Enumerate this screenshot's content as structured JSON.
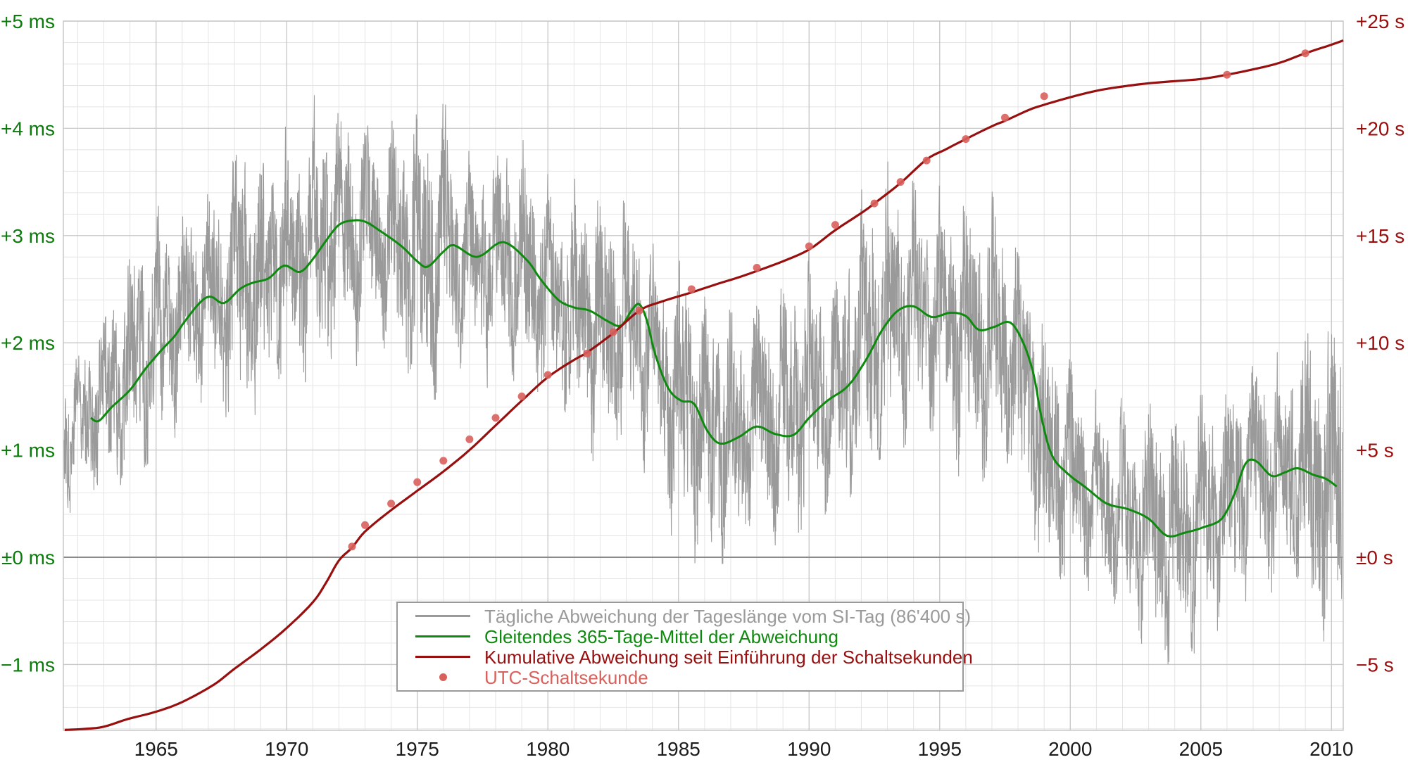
{
  "chart_data": {
    "type": "line",
    "title": "",
    "background_color": "#ffffff",
    "grid": {
      "minor_color": "#e4e4e4",
      "major_color": "#c8c8c8",
      "zero_line_color": "#8a8a8a",
      "x_minor_step_years": 1,
      "x_major_step_years": 5,
      "y_minor_step_ms": 0.2,
      "y_major_step_ms": 1
    },
    "x_axis": {
      "label": "",
      "range": [
        1961.45,
        2010.45
      ],
      "ticks": [
        1965,
        1970,
        1975,
        1980,
        1985,
        1990,
        1995,
        2000,
        2005,
        2010
      ],
      "tick_color": "#1b1b1b"
    },
    "y_axis_left": {
      "unit": "ms",
      "range": [
        -1.614,
        5
      ],
      "color": "#0b7c0b",
      "ticks": [
        {
          "value": 5,
          "label": "+5 ms"
        },
        {
          "value": 4,
          "label": "+4 ms"
        },
        {
          "value": 3,
          "label": "+3 ms"
        },
        {
          "value": 2,
          "label": "+2 ms"
        },
        {
          "value": 1,
          "label": "+1 ms"
        },
        {
          "value": 0,
          "label": "±0 ms"
        },
        {
          "value": -1,
          "label": "−1 ms"
        }
      ]
    },
    "y_axis_right": {
      "unit": "s",
      "range": [
        -8.07,
        25
      ],
      "color": "#9b0d0d",
      "ticks": [
        {
          "value": 25,
          "label": "+25 s"
        },
        {
          "value": 20,
          "label": "+20 s"
        },
        {
          "value": 15,
          "label": "+15 s"
        },
        {
          "value": 10,
          "label": "+10 s"
        },
        {
          "value": 5,
          "label": "+5 s"
        },
        {
          "value": 0,
          "label": "±0 s"
        },
        {
          "value": -5,
          "label": "−5 s"
        }
      ]
    },
    "series": [
      {
        "name": "Tägliche Abweichung der Tageslänge vom SI-Tag (86'400 s)",
        "type": "noisy_line",
        "color": "#9a9a9a",
        "unit": "ms",
        "description": "Daily deviation of day length; rendered as dense noise between yearly envelope [year, min_ms, max_ms]",
        "envelope": [
          [
            1961.5,
            0.3,
            1.8
          ],
          [
            1962,
            0.6,
            2.1
          ],
          [
            1963,
            0.6,
            2.6
          ],
          [
            1964,
            0.7,
            3.0
          ],
          [
            1965,
            1.0,
            3.4
          ],
          [
            1966,
            1.2,
            3.6
          ],
          [
            1967,
            1.2,
            3.7
          ],
          [
            1968,
            1.4,
            3.8
          ],
          [
            1969,
            1.3,
            3.9
          ],
          [
            1970,
            1.5,
            4.1
          ],
          [
            1971,
            1.6,
            4.35
          ],
          [
            1972,
            1.8,
            4.4
          ],
          [
            1973,
            1.7,
            4.3
          ],
          [
            1974,
            1.6,
            4.1
          ],
          [
            1975,
            1.5,
            4.1
          ],
          [
            1976,
            1.5,
            4.2
          ],
          [
            1977,
            1.6,
            4.1
          ],
          [
            1978,
            1.6,
            4.0
          ],
          [
            1979,
            1.4,
            3.9
          ],
          [
            1980,
            1.1,
            3.6
          ],
          [
            1981,
            1.0,
            3.5
          ],
          [
            1982,
            0.9,
            3.5
          ],
          [
            1983,
            1.0,
            3.6
          ],
          [
            1984,
            0.4,
            3.0
          ],
          [
            1985,
            0.1,
            2.8
          ],
          [
            1986,
            -0.1,
            2.4
          ],
          [
            1987,
            0.0,
            2.6
          ],
          [
            1988,
            0.0,
            2.6
          ],
          [
            1989,
            0.2,
            2.9
          ],
          [
            1990,
            0.3,
            3.1
          ],
          [
            1991,
            0.3,
            3.1
          ],
          [
            1992,
            0.8,
            3.5
          ],
          [
            1993,
            1.0,
            3.7
          ],
          [
            1994,
            0.9,
            3.6
          ],
          [
            1995,
            0.8,
            3.5
          ],
          [
            1996,
            0.6,
            3.4
          ],
          [
            1997,
            0.6,
            3.4
          ],
          [
            1998,
            0.0,
            2.8
          ],
          [
            1999,
            -0.35,
            2.2
          ],
          [
            2000,
            -0.55,
            1.9
          ],
          [
            2001,
            -0.55,
            1.7
          ],
          [
            2002,
            -0.7,
            1.5
          ],
          [
            2003,
            -0.95,
            1.4
          ],
          [
            2004,
            -1.05,
            1.45
          ],
          [
            2005,
            -1.0,
            1.6
          ],
          [
            2006,
            -0.5,
            1.9
          ],
          [
            2007,
            -0.35,
            2.0
          ],
          [
            2008,
            -0.5,
            2.2
          ],
          [
            2009,
            -0.8,
            2.1
          ],
          [
            2010,
            -0.95,
            2.2
          ],
          [
            2010.45,
            -0.9,
            2.1
          ]
        ]
      },
      {
        "name": "Gleitendes 365-Tage-Mittel der Abweichung",
        "type": "line",
        "color": "#0e8a0e",
        "unit": "ms",
        "points": [
          [
            1962.5,
            1.3
          ],
          [
            1962.8,
            1.27
          ],
          [
            1963.3,
            1.4
          ],
          [
            1964.0,
            1.56
          ],
          [
            1964.6,
            1.76
          ],
          [
            1965.2,
            1.93
          ],
          [
            1965.7,
            2.06
          ],
          [
            1966.1,
            2.2
          ],
          [
            1966.7,
            2.38
          ],
          [
            1967.1,
            2.43
          ],
          [
            1967.6,
            2.37
          ],
          [
            1968.2,
            2.5
          ],
          [
            1968.7,
            2.56
          ],
          [
            1969.3,
            2.6
          ],
          [
            1969.9,
            2.72
          ],
          [
            1970.5,
            2.66
          ],
          [
            1971.0,
            2.78
          ],
          [
            1971.5,
            2.95
          ],
          [
            1972.0,
            3.1
          ],
          [
            1972.5,
            3.14
          ],
          [
            1973.0,
            3.13
          ],
          [
            1973.6,
            3.04
          ],
          [
            1974.4,
            2.9
          ],
          [
            1975.0,
            2.76
          ],
          [
            1975.4,
            2.71
          ],
          [
            1976.0,
            2.85
          ],
          [
            1976.4,
            2.91
          ],
          [
            1977.1,
            2.81
          ],
          [
            1977.5,
            2.82
          ],
          [
            1978.3,
            2.94
          ],
          [
            1979.2,
            2.77
          ],
          [
            1979.7,
            2.6
          ],
          [
            1980.4,
            2.4
          ],
          [
            1981.0,
            2.33
          ],
          [
            1981.6,
            2.3
          ],
          [
            1982.3,
            2.2
          ],
          [
            1982.8,
            2.16
          ],
          [
            1983.2,
            2.3
          ],
          [
            1983.5,
            2.36
          ],
          [
            1983.8,
            2.2
          ],
          [
            1984.1,
            1.9
          ],
          [
            1984.6,
            1.58
          ],
          [
            1985.1,
            1.46
          ],
          [
            1985.6,
            1.43
          ],
          [
            1986.1,
            1.18
          ],
          [
            1986.6,
            1.06
          ],
          [
            1987.3,
            1.12
          ],
          [
            1988.0,
            1.22
          ],
          [
            1988.7,
            1.15
          ],
          [
            1989.4,
            1.14
          ],
          [
            1990.0,
            1.3
          ],
          [
            1990.7,
            1.46
          ],
          [
            1991.5,
            1.6
          ],
          [
            1992.2,
            1.85
          ],
          [
            1992.8,
            2.12
          ],
          [
            1993.4,
            2.3
          ],
          [
            1994.0,
            2.34
          ],
          [
            1994.7,
            2.24
          ],
          [
            1995.4,
            2.28
          ],
          [
            1996.0,
            2.25
          ],
          [
            1996.5,
            2.12
          ],
          [
            1997.1,
            2.15
          ],
          [
            1997.7,
            2.19
          ],
          [
            1998.2,
            2.0
          ],
          [
            1998.6,
            1.7
          ],
          [
            1998.9,
            1.3
          ],
          [
            1999.3,
            0.95
          ],
          [
            1999.9,
            0.78
          ],
          [
            2000.6,
            0.65
          ],
          [
            2001.4,
            0.5
          ],
          [
            2002.2,
            0.45
          ],
          [
            2003.0,
            0.36
          ],
          [
            2003.7,
            0.2
          ],
          [
            2004.4,
            0.23
          ],
          [
            2005.1,
            0.28
          ],
          [
            2005.8,
            0.36
          ],
          [
            2006.3,
            0.6
          ],
          [
            2006.7,
            0.87
          ],
          [
            2007.1,
            0.9
          ],
          [
            2007.7,
            0.76
          ],
          [
            2008.2,
            0.79
          ],
          [
            2008.7,
            0.83
          ],
          [
            2009.3,
            0.77
          ],
          [
            2009.8,
            0.73
          ],
          [
            2010.2,
            0.66
          ]
        ]
      },
      {
        "name": "Kumulative Abweichung seit Einführung der Schaltsekunden",
        "type": "line",
        "color": "#970f0f",
        "unit": "s",
        "points": [
          [
            1961.5,
            -8.05
          ],
          [
            1962.3,
            -8.0
          ],
          [
            1963.0,
            -7.9
          ],
          [
            1963.9,
            -7.55
          ],
          [
            1965.0,
            -7.2
          ],
          [
            1966.0,
            -6.75
          ],
          [
            1967.2,
            -5.95
          ],
          [
            1968.0,
            -5.2
          ],
          [
            1969.0,
            -4.3
          ],
          [
            1970.0,
            -3.3
          ],
          [
            1971.0,
            -2.1
          ],
          [
            1971.5,
            -1.2
          ],
          [
            1972.0,
            -0.15
          ],
          [
            1972.5,
            0.45
          ],
          [
            1973.0,
            1.2
          ],
          [
            1974.0,
            2.2
          ],
          [
            1975.0,
            3.1
          ],
          [
            1976.0,
            4.0
          ],
          [
            1977.0,
            5.0
          ],
          [
            1978.0,
            6.15
          ],
          [
            1979.0,
            7.3
          ],
          [
            1980.0,
            8.4
          ],
          [
            1981.0,
            9.2
          ],
          [
            1981.5,
            9.55
          ],
          [
            1982.5,
            10.45
          ],
          [
            1983.5,
            11.5
          ],
          [
            1984.3,
            11.9
          ],
          [
            1985.5,
            12.35
          ],
          [
            1986.5,
            12.75
          ],
          [
            1987.3,
            13.05
          ],
          [
            1988.0,
            13.35
          ],
          [
            1989.0,
            13.8
          ],
          [
            1990.0,
            14.35
          ],
          [
            1991.0,
            15.25
          ],
          [
            1992.0,
            16.05
          ],
          [
            1992.5,
            16.5
          ],
          [
            1993.5,
            17.45
          ],
          [
            1994.5,
            18.55
          ],
          [
            1995.2,
            19.0
          ],
          [
            1996.0,
            19.5
          ],
          [
            1997.0,
            20.1
          ],
          [
            1997.5,
            20.35
          ],
          [
            1998.4,
            20.85
          ],
          [
            1999.0,
            21.1
          ],
          [
            2000.0,
            21.45
          ],
          [
            2001.0,
            21.75
          ],
          [
            2002.0,
            21.95
          ],
          [
            2003.0,
            22.1
          ],
          [
            2004.0,
            22.2
          ],
          [
            2005.0,
            22.3
          ],
          [
            2006.0,
            22.5
          ],
          [
            2007.0,
            22.75
          ],
          [
            2008.0,
            23.05
          ],
          [
            2009.0,
            23.5
          ],
          [
            2010.0,
            23.9
          ],
          [
            2010.45,
            24.1
          ]
        ]
      },
      {
        "name": "UTC-Schaltsekunde",
        "type": "scatter",
        "color": "#d9615c",
        "unit": "s",
        "marker_radius_px": 5.5,
        "points": [
          [
            1972.5,
            0.5
          ],
          [
            1973.0,
            1.5
          ],
          [
            1974.0,
            2.5
          ],
          [
            1975.0,
            3.5
          ],
          [
            1976.0,
            4.5
          ],
          [
            1977.0,
            5.5
          ],
          [
            1978.0,
            6.5
          ],
          [
            1979.0,
            7.5
          ],
          [
            1980.0,
            8.5
          ],
          [
            1981.5,
            9.5
          ],
          [
            1982.5,
            10.5
          ],
          [
            1983.5,
            11.5
          ],
          [
            1985.5,
            12.5
          ],
          [
            1988.0,
            13.5
          ],
          [
            1990.0,
            14.5
          ],
          [
            1991.0,
            15.5
          ],
          [
            1992.5,
            16.5
          ],
          [
            1993.5,
            17.5
          ],
          [
            1994.5,
            18.5
          ],
          [
            1996.0,
            19.5
          ],
          [
            1997.5,
            20.5
          ],
          [
            1999.0,
            21.5
          ],
          [
            2006.0,
            22.5
          ],
          [
            2009.0,
            23.5
          ]
        ]
      }
    ],
    "legend": {
      "position": "inside-bottom-left-of-center",
      "border_color": "#9a9a9a",
      "background": "#ffffff"
    }
  }
}
